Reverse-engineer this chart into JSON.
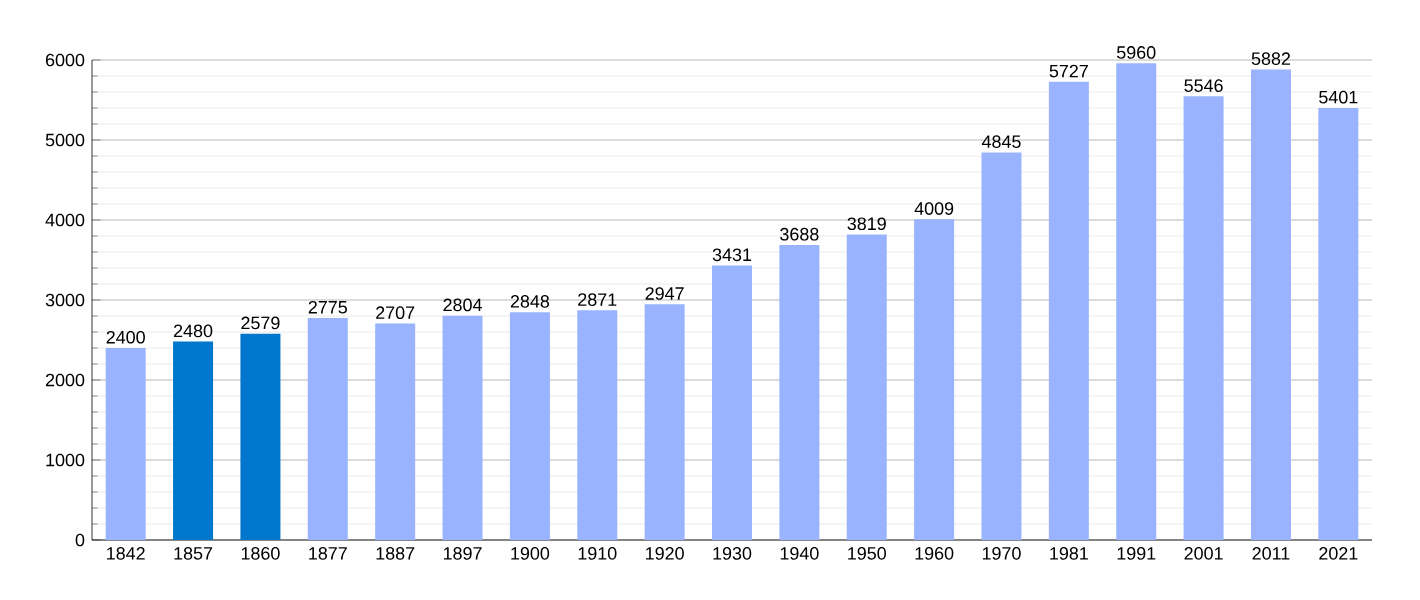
{
  "chart_data": {
    "type": "bar",
    "categories": [
      "1842",
      "1857",
      "1860",
      "1877",
      "1887",
      "1897",
      "1900",
      "1910",
      "1920",
      "1930",
      "1940",
      "1950",
      "1960",
      "1970",
      "1981",
      "1991",
      "2001",
      "2011",
      "2021"
    ],
    "values": [
      2400,
      2480,
      2579,
      2775,
      2707,
      2804,
      2848,
      2871,
      2947,
      3431,
      3688,
      3819,
      4009,
      4845,
      5727,
      5960,
      5546,
      5882,
      5401
    ],
    "colors": [
      "#99b3ff",
      "#0077cc",
      "#0077cc",
      "#99b3ff",
      "#99b3ff",
      "#99b3ff",
      "#99b3ff",
      "#99b3ff",
      "#99b3ff",
      "#99b3ff",
      "#99b3ff",
      "#99b3ff",
      "#99b3ff",
      "#99b3ff",
      "#99b3ff",
      "#99b3ff",
      "#99b3ff",
      "#99b3ff",
      "#99b3ff"
    ],
    "ylim": [
      0,
      6000
    ],
    "yticks": [
      0,
      1000,
      2000,
      3000,
      4000,
      5000,
      6000
    ],
    "grid": "y",
    "data_labels": true
  }
}
